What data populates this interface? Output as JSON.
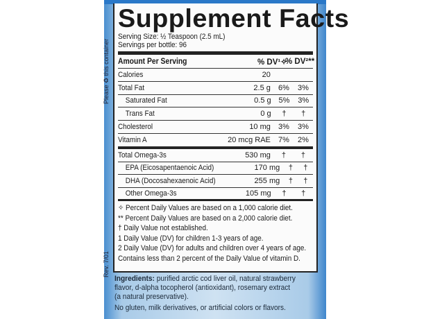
{
  "side_text": {
    "recycle": "Please ♻ this container",
    "rev": "Rev. 7/01"
  },
  "title": "Supplement Facts",
  "serving_size": "Serving Size: ½ Teaspoon (2.5 mL)",
  "servings_per": "Servings per bottle: 96",
  "header": {
    "amount": "Amount Per Serving",
    "dv1": "% DV¹✧",
    "dv2": "% DV²**"
  },
  "rows": [
    {
      "name": "Calories",
      "amount": "20",
      "dv1": "",
      "dv2": ""
    },
    {
      "name": "Total Fat",
      "amount": "2.5 g",
      "dv1": "6%",
      "dv2": "3%"
    },
    {
      "name": "Saturated Fat",
      "amount": "0.5 g",
      "dv1": "5%",
      "dv2": "3%"
    },
    {
      "name": "Trans Fat",
      "amount": "0 g",
      "dv1": "†",
      "dv2": "†"
    },
    {
      "name": "Cholesterol",
      "amount": "10 mg",
      "dv1": "3%",
      "dv2": "3%"
    },
    {
      "name": "Vitamin A",
      "amount": "20 mcg RAE",
      "dv1": "7%",
      "dv2": "2%"
    },
    {
      "name": "Total Omega-3s",
      "amount": "530 mg",
      "dv1": "†",
      "dv2": "†"
    },
    {
      "name": "EPA (Eicosapentaenoic Acid)",
      "amount": "170 mg",
      "dv1": "†",
      "dv2": "†"
    },
    {
      "name": "DHA (Docosahexaenoic Acid)",
      "amount": "255 mg",
      "dv1": "†",
      "dv2": "†"
    },
    {
      "name": "Other Omega-3s",
      "amount": "105 mg",
      "dv1": "†",
      "dv2": "†"
    }
  ],
  "footnotes": [
    "✧ Percent Daily Values are based on a 1,000 calorie diet.",
    "** Percent Daily Values are based on a 2,000 calorie diet.",
    "† Daily Value not established.",
    "1  Daily Value (DV) for children 1-3 years of age.",
    "2  Daily Value (DV) for adults and children over 4 years of age.",
    "Contains less than 2 percent of the Daily Value of vitamin D."
  ],
  "ingredients": {
    "label": "Ingredients:",
    "lines": [
      " purified arctic cod liver oil, natural strawberry",
      "flavor, d-alpha tocopherol (antioxidant), rosemary extract",
      "(a natural preservative)."
    ]
  },
  "free_from": "No gluten, milk derivatives, or artificial colors or flavors."
}
